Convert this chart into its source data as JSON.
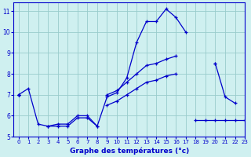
{
  "title": "Graphe des températures (°c)",
  "xlim": [
    -0.5,
    23
  ],
  "ylim": [
    5,
    11.4
  ],
  "yticks": [
    5,
    6,
    7,
    8,
    9,
    10,
    11
  ],
  "xticks": [
    0,
    1,
    2,
    3,
    4,
    5,
    6,
    7,
    8,
    9,
    10,
    11,
    12,
    13,
    14,
    15,
    16,
    17,
    18,
    19,
    20,
    21,
    22,
    23
  ],
  "background_color": "#cff0f0",
  "line_color": "#0000cc",
  "grid_color": "#99cccc",
  "series": [
    [
      7.0,
      7.3,
      5.6,
      5.5,
      5.6,
      5.6,
      6.0,
      6.0,
      5.5,
      6.9,
      7.1,
      7.8,
      9.5,
      10.5,
      10.5,
      11.1,
      10.7,
      10.0,
      null,
      null,
      8.5,
      6.9,
      6.6,
      null
    ],
    [
      7.0,
      null,
      null,
      5.5,
      5.5,
      5.5,
      5.9,
      5.9,
      5.5,
      null,
      null,
      null,
      null,
      null,
      null,
      null,
      null,
      null,
      5.8,
      5.8,
      5.8,
      5.8,
      5.8,
      5.8
    ],
    [
      7.0,
      null,
      null,
      null,
      null,
      null,
      null,
      null,
      null,
      7.0,
      7.2,
      7.6,
      8.0,
      8.4,
      8.5,
      8.7,
      8.85,
      null,
      null,
      null,
      8.5,
      null,
      null,
      null
    ],
    [
      7.0,
      null,
      null,
      null,
      null,
      null,
      null,
      null,
      null,
      6.5,
      6.7,
      7.0,
      7.3,
      7.6,
      7.7,
      7.9,
      8.0,
      null,
      null,
      null,
      null,
      null,
      null,
      null
    ]
  ]
}
